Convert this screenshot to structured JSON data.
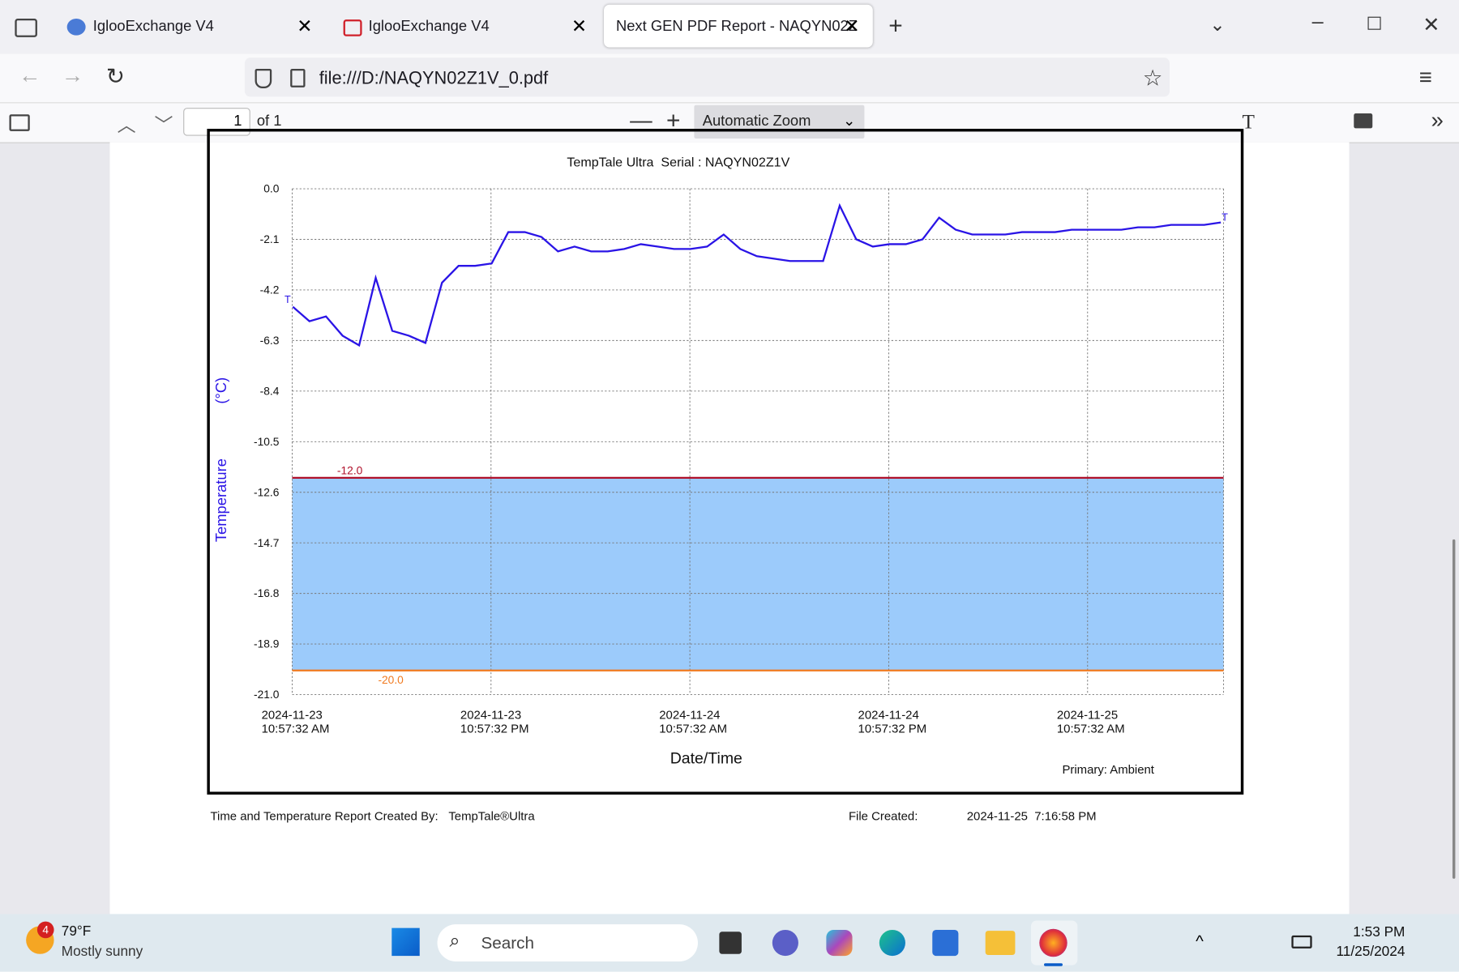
{
  "browser": {
    "tabs": [
      "IglooExchange V4",
      "IglooExchange V4",
      "Next GEN PDF Report - NAQYN02Z"
    ],
    "url": "file:///D:/NAQYN02Z1V_0.pdf"
  },
  "pdf_toolbar": {
    "page": "1",
    "of": "of 1",
    "zoom": "Automatic Zoom"
  },
  "chart_data": {
    "type": "line",
    "title": "TempTale Ultra  Serial : NAQYN02Z1V",
    "y_label": "Temperature",
    "y_unit": "(°C)",
    "x_label": "Date/Time",
    "note": "Primary: Ambient",
    "end_marker": "T",
    "color": "#2a14e6",
    "grid": true,
    "x": [
      "2024-11-23T11:00",
      "2024-11-23T12:00",
      "2024-11-23T13:00",
      "2024-11-23T14:00",
      "2024-11-23T15:00",
      "2024-11-23T16:00",
      "2024-11-23T17:00",
      "2024-11-23T18:00",
      "2024-11-23T19:00",
      "2024-11-23T20:00",
      "2024-11-23T21:00",
      "2024-11-23T22:00",
      "2024-11-23T23:00",
      "2024-11-24T00:00",
      "2024-11-24T01:00",
      "2024-11-24T02:00",
      "2024-11-24T03:00",
      "2024-11-24T04:00",
      "2024-11-24T05:00",
      "2024-11-24T06:00",
      "2024-11-24T07:00",
      "2024-11-24T08:00",
      "2024-11-24T09:00",
      "2024-11-24T10:00",
      "2024-11-24T11:00",
      "2024-11-24T12:00",
      "2024-11-24T13:00",
      "2024-11-24T14:00",
      "2024-11-24T15:00",
      "2024-11-24T16:00",
      "2024-11-24T17:00",
      "2024-11-24T18:00",
      "2024-11-24T19:00",
      "2024-11-24T20:00",
      "2024-11-24T21:00",
      "2024-11-24T22:00",
      "2024-11-24T23:00",
      "2024-11-25T00:00",
      "2024-11-25T01:00",
      "2024-11-25T02:00",
      "2024-11-25T03:00",
      "2024-11-25T04:00",
      "2024-11-25T05:00",
      "2024-11-25T06:00",
      "2024-11-25T07:00",
      "2024-11-25T08:00",
      "2024-11-25T09:00",
      "2024-11-25T10:00",
      "2024-11-25T11:00",
      "2024-11-25T12:00",
      "2024-11-25T13:00",
      "2024-11-25T14:00",
      "2024-11-25T15:00",
      "2024-11-25T16:00",
      "2024-11-25T17:00",
      "2024-11-25T18:00",
      "2024-11-25T19:00"
    ],
    "values": [
      -4.9,
      -5.5,
      -5.3,
      -6.1,
      -6.5,
      -3.7,
      -5.9,
      -6.1,
      -6.4,
      -3.9,
      -3.2,
      -3.2,
      -3.1,
      -1.8,
      -1.8,
      -2.0,
      -2.6,
      -2.4,
      -2.6,
      -2.6,
      -2.5,
      -2.3,
      -2.4,
      -2.5,
      -2.5,
      -2.4,
      -1.9,
      -2.5,
      -2.8,
      -2.9,
      -3.0,
      -3.0,
      -3.0,
      -0.7,
      -2.1,
      -2.4,
      -2.3,
      -2.3,
      -2.1,
      -1.2,
      -1.7,
      -1.9,
      -1.9,
      -1.9,
      -1.8,
      -1.8,
      -1.8,
      -1.7,
      -1.7,
      -1.7,
      -1.7,
      -1.6,
      -1.6,
      -1.5,
      -1.5,
      -1.5,
      -1.4
    ],
    "xlim": [
      "2024-11-23T10:57:32",
      "2024-11-25T19:10:00"
    ],
    "xticks": [
      {
        "value": "2024-11-23T10:57:32",
        "label": "2024-11-23\n10:57:32 AM"
      },
      {
        "value": "2024-11-23T22:57:32",
        "label": "2024-11-23\n10:57:32 PM"
      },
      {
        "value": "2024-11-24T10:57:32",
        "label": "2024-11-24\n10:57:32 AM"
      },
      {
        "value": "2024-11-24T22:57:32",
        "label": "2024-11-24\n10:57:32 PM"
      },
      {
        "value": "2024-11-25T10:57:32",
        "label": "2024-11-25\n10:57:32 AM"
      }
    ],
    "ylim": [
      -21,
      0
    ],
    "yticks": [
      {
        "value": 0,
        "label": "0.0"
      },
      -2.1,
      -4.2,
      -6.3,
      -8.4,
      -10.5,
      -12.6,
      -14.7,
      -16.8,
      -18.9,
      {
        "value": -21,
        "label": "-21.0"
      }
    ],
    "thresholds": [
      {
        "value": -12,
        "label": "-12.0",
        "color": "#b0102a"
      },
      {
        "value": -20,
        "label": "-20.0",
        "color": "#f07a20"
      }
    ],
    "band_color": "#9ccbfb"
  },
  "footer": {
    "created_by_label": "Time and Temperature Report Created By:",
    "created_by": "TempTale®Ultra",
    "file_created_label": "File Created:",
    "file_created": "2024-11-25  7:16:58 PM"
  },
  "taskbar": {
    "badge": "4",
    "temp": "79°F",
    "condition": "Mostly sunny",
    "search": "Search",
    "time": "1:53 PM",
    "date": "11/25/2024"
  }
}
